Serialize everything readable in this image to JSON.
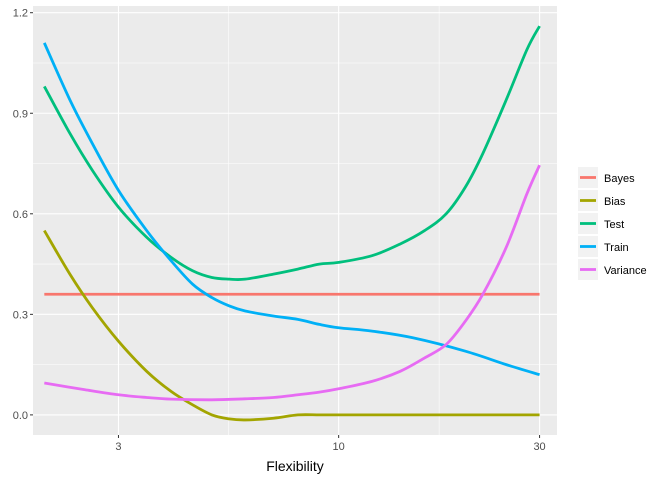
{
  "chart_data": {
    "type": "line",
    "title": "",
    "xlabel": "Flexibility",
    "ylabel": "",
    "x_scale": "log",
    "xlim": [
      1.88,
      33
    ],
    "ylim": [
      -0.06,
      1.22
    ],
    "x_ticks": [
      3,
      10,
      30
    ],
    "x_tick_labels": [
      "3",
      "10",
      "30"
    ],
    "y_ticks": [
      0.0,
      0.3,
      0.6,
      0.9,
      1.2
    ],
    "y_tick_labels": [
      "0.0",
      "0.3",
      "0.6",
      "0.9",
      "1.2"
    ],
    "grid": true,
    "legend_position": "right",
    "series": [
      {
        "name": "Bayes",
        "color": "#F8766D",
        "x": [
          2,
          30
        ],
        "y": [
          0.36,
          0.36
        ]
      },
      {
        "name": "Bias",
        "color": "#A3A500",
        "x": [
          2,
          2.3,
          2.6,
          3,
          3.5,
          4,
          4.5,
          5,
          5.5,
          6,
          7,
          8,
          9,
          10,
          12,
          15,
          20,
          25,
          30
        ],
        "y": [
          0.55,
          0.42,
          0.32,
          0.22,
          0.13,
          0.07,
          0.03,
          0.0,
          -0.012,
          -0.015,
          -0.01,
          0.0,
          0.0,
          0.0,
          0.0,
          0.0,
          0.0,
          0.0,
          0.0
        ]
      },
      {
        "name": "Test",
        "color": "#00BF7D",
        "x": [
          2,
          2.3,
          2.6,
          3,
          3.5,
          4,
          4.5,
          5,
          5.5,
          6,
          7,
          8,
          9,
          10,
          12,
          14,
          16,
          18,
          20,
          22,
          25,
          28,
          30
        ],
        "y": [
          0.98,
          0.84,
          0.73,
          0.62,
          0.53,
          0.47,
          0.43,
          0.41,
          0.405,
          0.405,
          0.42,
          0.435,
          0.45,
          0.455,
          0.475,
          0.51,
          0.55,
          0.6,
          0.68,
          0.78,
          0.94,
          1.09,
          1.16
        ]
      },
      {
        "name": "Train",
        "color": "#00B0F6",
        "x": [
          2,
          2.3,
          2.6,
          3,
          3.5,
          4,
          4.5,
          5,
          5.5,
          6,
          7,
          8,
          9,
          10,
          12,
          15,
          20,
          25,
          30
        ],
        "y": [
          1.11,
          0.94,
          0.81,
          0.67,
          0.55,
          0.46,
          0.39,
          0.35,
          0.325,
          0.31,
          0.295,
          0.285,
          0.27,
          0.26,
          0.25,
          0.23,
          0.19,
          0.15,
          0.12
        ]
      },
      {
        "name": "Variance",
        "color": "#E76BF3",
        "x": [
          2,
          2.5,
          3,
          3.5,
          4,
          5,
          6,
          7,
          8,
          9,
          10,
          12,
          14,
          16,
          18,
          20,
          22,
          25,
          28,
          30
        ],
        "y": [
          0.095,
          0.075,
          0.06,
          0.052,
          0.047,
          0.045,
          0.048,
          0.052,
          0.06,
          0.068,
          0.078,
          0.1,
          0.13,
          0.17,
          0.21,
          0.28,
          0.36,
          0.5,
          0.66,
          0.745
        ]
      }
    ]
  }
}
